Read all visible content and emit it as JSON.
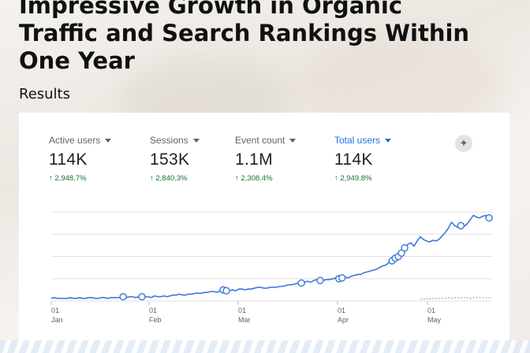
{
  "headline": {
    "line1": "Impressive Growth in Organic",
    "line2": "Traffic and Search Rankings Within",
    "line3": "One Year"
  },
  "results_label": "Results",
  "metrics": [
    {
      "name": "Active users",
      "value": "114K",
      "delta": "↑ 2,948.7%"
    },
    {
      "name": "Sessions",
      "value": "153K",
      "delta": "↑ 2,840.3%"
    },
    {
      "name": "Event count",
      "value": "1.1M",
      "delta": "↑ 2,308.4%"
    },
    {
      "name": "Total users",
      "value": "114K",
      "delta": "↑ 2,949.8%",
      "selected": true
    }
  ],
  "insights_icon": "insights-icon",
  "colors": {
    "line": "#3c78d8",
    "accent": "#1a73e8",
    "positive": "#137333",
    "comparison": "#9aa0a6"
  },
  "chart_data": {
    "type": "line",
    "x_ticks": [
      {
        "day": "01",
        "month": "Jan"
      },
      {
        "day": "01",
        "month": "Feb"
      },
      {
        "day": "01",
        "month": "Mar"
      },
      {
        "day": "01",
        "month": "Apr"
      },
      {
        "day": "01",
        "month": "May"
      }
    ],
    "grid": true,
    "series": [
      {
        "values": [
          3,
          4,
          3,
          3,
          3,
          3,
          4,
          3,
          3,
          4,
          3,
          3,
          4,
          4,
          3,
          3,
          4,
          4,
          3,
          4,
          4,
          4,
          4,
          5,
          4,
          5,
          5,
          4,
          5,
          5,
          5,
          5,
          4,
          6,
          5,
          5,
          6,
          5,
          6,
          7,
          7,
          8,
          7,
          7,
          8,
          8,
          9,
          9,
          9,
          10,
          10,
          11,
          11,
          10,
          12,
          13,
          12,
          12,
          13,
          12,
          14,
          14,
          13,
          14,
          14,
          15,
          16,
          16,
          15,
          15,
          16,
          16,
          16,
          17,
          17,
          18,
          19,
          19,
          20,
          21,
          21,
          22,
          23,
          22,
          24,
          25,
          24,
          24,
          25,
          25,
          26,
          27,
          26,
          27,
          28,
          27,
          29,
          30,
          31,
          31,
          33,
          34,
          35,
          36,
          37,
          39,
          41,
          42,
          45,
          47,
          50,
          52,
          56,
          62,
          66,
          68,
          64,
          70,
          75,
          72,
          70,
          69,
          71,
          70,
          72,
          76,
          80,
          85,
          92,
          88,
          86,
          88,
          87,
          90,
          95,
          100,
          98,
          97,
          99,
          100,
          97,
          98
        ]
      },
      {
        "values": [
          0,
          0,
          0,
          0,
          0,
          0,
          0,
          0,
          0,
          0,
          0,
          0,
          0,
          0,
          0,
          0,
          0,
          0,
          0,
          0,
          0,
          0,
          0,
          0,
          0,
          0,
          0,
          0,
          0,
          0,
          0,
          0,
          0,
          0,
          0,
          0,
          0,
          0,
          0,
          0,
          0,
          0,
          0,
          0,
          0,
          0,
          0,
          0,
          0,
          0,
          0,
          0,
          0,
          0,
          0,
          0,
          0,
          0,
          0,
          0,
          0,
          0,
          0,
          0,
          0,
          0,
          0,
          0,
          0,
          0,
          0,
          0,
          0,
          0,
          0,
          0,
          0,
          0,
          0,
          0,
          0,
          0,
          0,
          0,
          0,
          0,
          0,
          0,
          0,
          0,
          0,
          0,
          0,
          0,
          0,
          0,
          0,
          0,
          0,
          0,
          0,
          0,
          0,
          0,
          0,
          0,
          0,
          0,
          0,
          0,
          0,
          0,
          0,
          0,
          0,
          0,
          0,
          0,
          2,
          2,
          3,
          2,
          3,
          3,
          3,
          3,
          3,
          4,
          3,
          4,
          4,
          3,
          4,
          4,
          3,
          4,
          4,
          4,
          4,
          4,
          4,
          4
        ]
      }
    ],
    "annotated_points": [
      23,
      29,
      55,
      56,
      80,
      86,
      92,
      93,
      109,
      110,
      111,
      112,
      113,
      131,
      140
    ]
  }
}
